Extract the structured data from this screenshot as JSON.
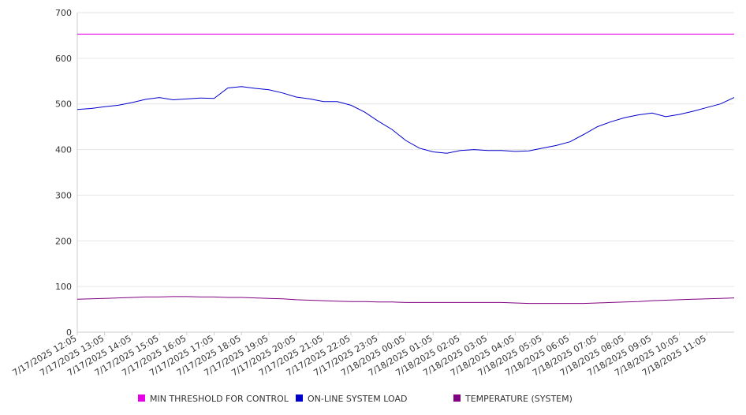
{
  "chart_data": {
    "type": "line",
    "title": "",
    "xlabel": "",
    "ylabel": "",
    "ylim": [
      0,
      700
    ],
    "yticks": [
      0,
      100,
      200,
      300,
      400,
      500,
      600,
      700
    ],
    "grid": true,
    "legend_position": "bottom",
    "x_labels": [
      "7/17/2025 12:05",
      "7/17/2025 13:05",
      "7/17/2025 14:05",
      "7/17/2025 15:05",
      "7/17/2025 16:05",
      "7/17/2025 17:05",
      "7/17/2025 18:05",
      "7/17/2025 19:05",
      "7/17/2025 20:05",
      "7/17/2025 21:05",
      "7/17/2025 22:05",
      "7/17/2025 23:05",
      "7/18/2025 00:05",
      "7/18/2025 01:05",
      "7/18/2025 02:05",
      "7/18/2025 03:05",
      "7/18/2025 04:05",
      "7/18/2025 05:05",
      "7/18/2025 06:05",
      "7/18/2025 07:05",
      "7/18/2025 08:05",
      "7/18/2025 09:05",
      "7/18/2025 10:05",
      "7/18/2025 11:05"
    ],
    "x_hours": [
      0,
      0.5,
      1,
      1.5,
      2,
      2.5,
      3,
      3.5,
      4,
      4.5,
      5,
      5.5,
      6,
      6.5,
      7,
      7.5,
      8,
      8.5,
      9,
      9.5,
      10,
      10.5,
      11,
      11.5,
      12,
      12.5,
      13,
      13.5,
      14,
      14.5,
      15,
      15.5,
      16,
      16.5,
      17,
      17.5,
      18,
      18.5,
      19,
      19.5,
      20,
      20.5,
      21,
      21.5,
      22,
      22.5,
      23,
      23.5,
      24
    ],
    "series": [
      {
        "name": "MIN THRESHOLD FOR CONTROL",
        "color": "#e600e6",
        "values": [
          653,
          653,
          653,
          653,
          653,
          653,
          653,
          653,
          653,
          653,
          653,
          653,
          653,
          653,
          653,
          653,
          653,
          653,
          653,
          653,
          653,
          653,
          653,
          653,
          653,
          653,
          653,
          653,
          653,
          653,
          653,
          653,
          653,
          653,
          653,
          653,
          653,
          653,
          653,
          653,
          653,
          653,
          653,
          653,
          653,
          653,
          653,
          653,
          653
        ]
      },
      {
        "name": "ON-LINE SYSTEM LOAD",
        "color": "#0000cc",
        "values": [
          488,
          490,
          494,
          497,
          503,
          510,
          514,
          509,
          511,
          513,
          512,
          535,
          538,
          534,
          531,
          524,
          515,
          511,
          505,
          505,
          497,
          482,
          462,
          444,
          420,
          403,
          395,
          392,
          398,
          400,
          398,
          398,
          396,
          397,
          403,
          409,
          417,
          433,
          450,
          461,
          470,
          476,
          480,
          472,
          477,
          484,
          492,
          500,
          514
        ]
      },
      {
        "name": "TEMPERATURE (SYSTEM)",
        "color": "#800080",
        "values": [
          72,
          73,
          74,
          75,
          76,
          77,
          77,
          78,
          78,
          77,
          77,
          76,
          76,
          75,
          74,
          73,
          71,
          70,
          69,
          68,
          67,
          67,
          66,
          66,
          65,
          65,
          65,
          65,
          65,
          65,
          65,
          65,
          64,
          63,
          63,
          63,
          63,
          63,
          64,
          65,
          66,
          67,
          69,
          70,
          71,
          72,
          73,
          74,
          75
        ]
      }
    ]
  }
}
